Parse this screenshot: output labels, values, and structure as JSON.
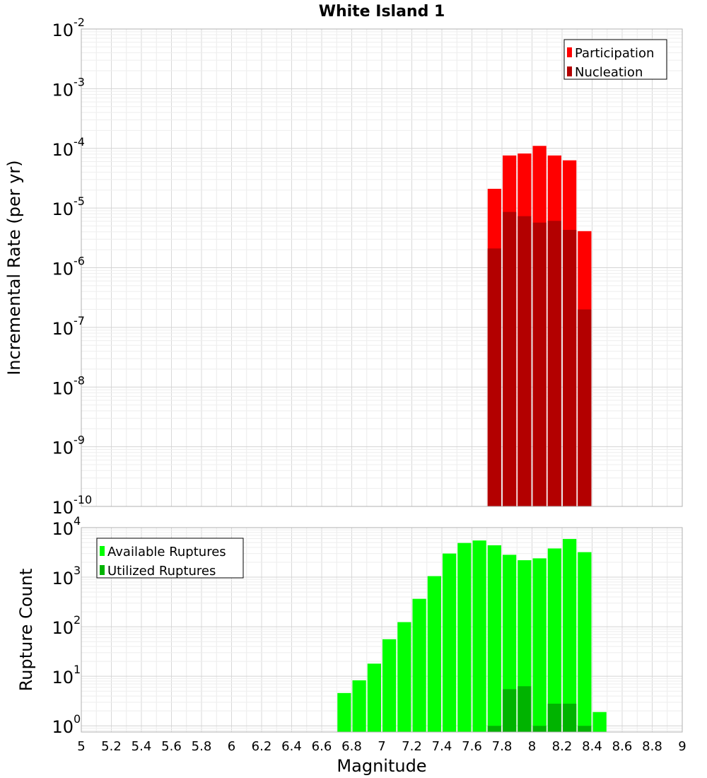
{
  "chart_data": [
    {
      "type": "bar",
      "title": "White Island 1",
      "xlabel": "Magnitude",
      "ylabel": "Incremental Rate (per yr)",
      "xlim": [
        5,
        9
      ],
      "ylim": [
        1e-10,
        0.01
      ],
      "yscale": "log",
      "grid": true,
      "legend_position": "top-right",
      "bin_width": 0.1,
      "ytick_exponents": [
        -10,
        -9,
        -8,
        -7,
        -6,
        -5,
        -4,
        -3,
        -2
      ],
      "series": [
        {
          "name": "Participation",
          "color": "#ff0000",
          "x": [
            7.75,
            7.85,
            7.95,
            8.05,
            8.15,
            8.25,
            8.35
          ],
          "values": [
            2.1e-05,
            7.6e-05,
            8.2e-05,
            0.00011,
            7.6e-05,
            6.3e-05,
            4.1e-06
          ]
        },
        {
          "name": "Nucleation",
          "color": "#b30000",
          "x": [
            7.75,
            7.85,
            7.95,
            8.05,
            8.15,
            8.25,
            8.35
          ],
          "values": [
            2.1e-06,
            8.6e-06,
            7.3e-06,
            5.7e-06,
            6.1e-06,
            4.3e-06,
            2e-07
          ]
        }
      ]
    },
    {
      "type": "bar",
      "xlabel": "Magnitude",
      "ylabel": "Rupture Count",
      "xlim": [
        5,
        9
      ],
      "ylim": [
        0.75,
        10000
      ],
      "yscale": "log",
      "grid": true,
      "legend_position": "top-left",
      "bin_width": 0.1,
      "ytick_exponents": [
        0,
        1,
        2,
        3,
        4
      ],
      "xticks": [
        "5",
        "5.2",
        "5.4",
        "5.6",
        "5.8",
        "6",
        "6.2",
        "6.4",
        "6.6",
        "6.8",
        "7",
        "7.2",
        "7.4",
        "7.6",
        "7.8",
        "8",
        "8.2",
        "8.4",
        "8.6",
        "8.8",
        "9"
      ],
      "series": [
        {
          "name": "Available Ruptures",
          "color": "#00ff00",
          "x": [
            6.75,
            6.85,
            6.95,
            7.05,
            7.15,
            7.25,
            7.35,
            7.45,
            7.55,
            7.65,
            7.75,
            7.85,
            7.95,
            8.05,
            8.15,
            8.25,
            8.35,
            8.45
          ],
          "values": [
            4.6,
            8.3,
            18,
            56,
            124,
            366,
            1050,
            3000,
            4900,
            5500,
            4400,
            2830,
            2200,
            2400,
            3800,
            5900,
            3200,
            1.9
          ]
        },
        {
          "name": "Utilized Ruptures",
          "color": "#00b300",
          "x": [
            7.75,
            7.85,
            7.95,
            8.05,
            8.15,
            8.25,
            8.35
          ],
          "values": [
            1,
            5.5,
            6.3,
            1,
            2.8,
            2.8,
            1
          ]
        }
      ]
    }
  ]
}
